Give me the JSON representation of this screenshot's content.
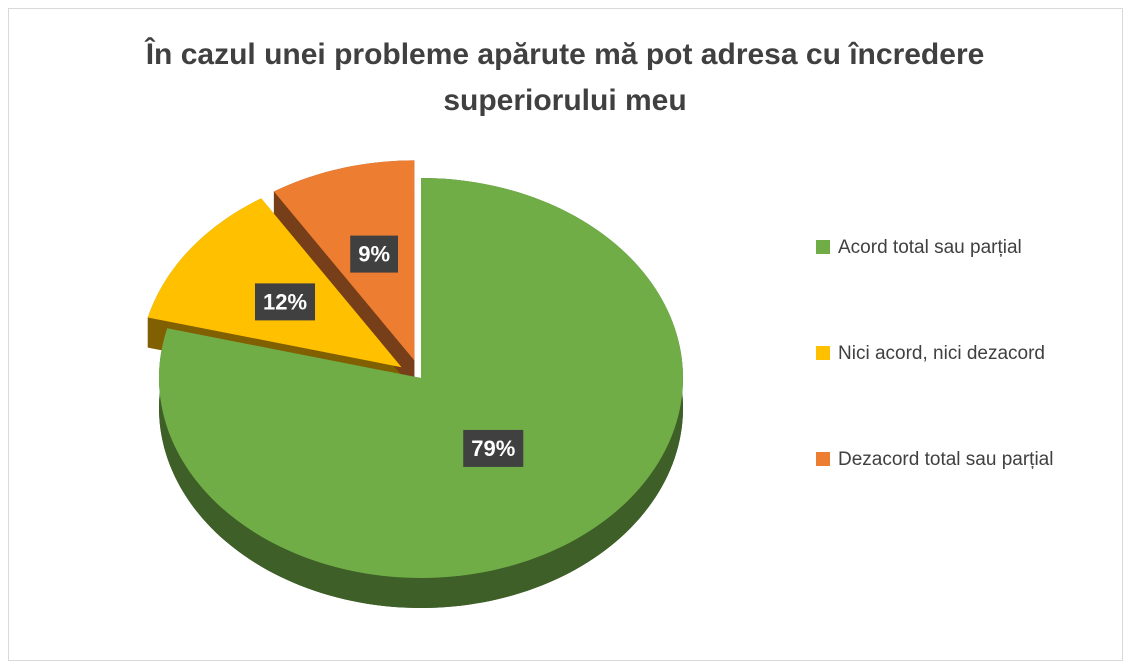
{
  "chart_data": {
    "type": "pie",
    "title": "În cazul unei probleme apărute mă pot adresa cu încredere superiorului meu",
    "categories": [
      "Acord total sau parțial",
      "Nici acord, nici dezacord",
      "Dezacord total sau parțial"
    ],
    "values": [
      79,
      12,
      9
    ],
    "value_labels": [
      "79%",
      "12%",
      "9%"
    ],
    "colors": [
      "#70ad47",
      "#ffc000",
      "#ed7d31"
    ],
    "legend": "right"
  }
}
